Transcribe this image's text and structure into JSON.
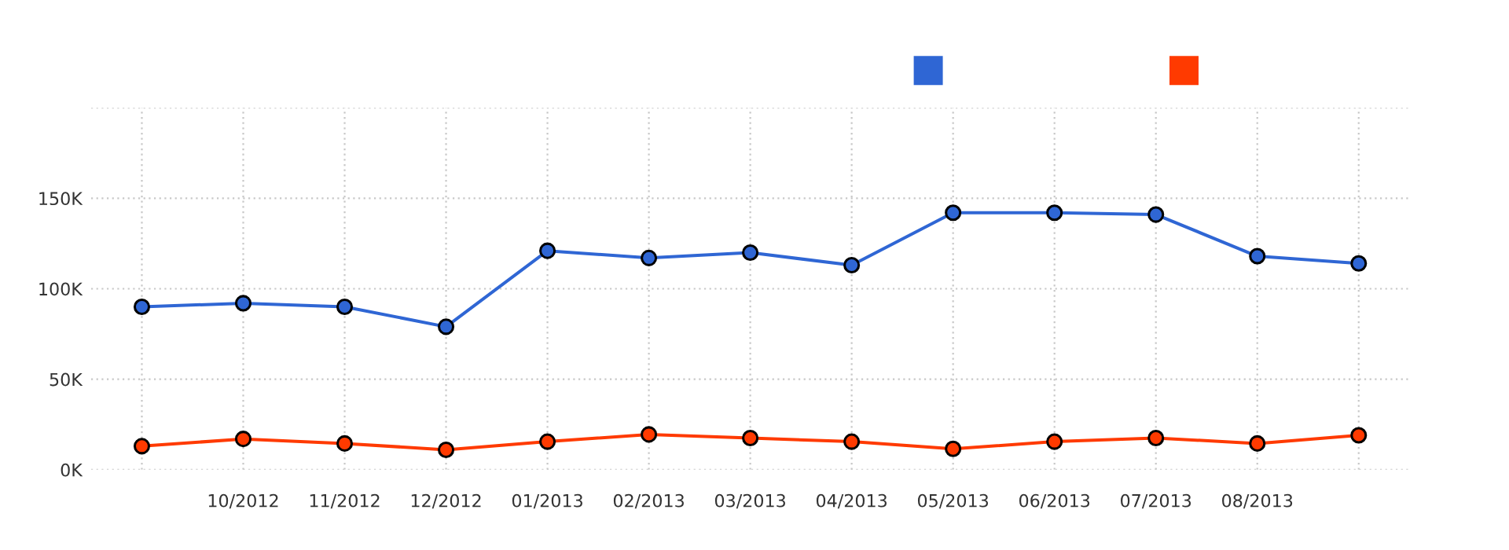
{
  "chart_data": {
    "type": "line",
    "categories": [
      null,
      "10/2012",
      "11/2012",
      "12/2012",
      "01/2013",
      "02/2013",
      "03/2013",
      "04/2013",
      "05/2013",
      "06/2013",
      "07/2013",
      "08/2013",
      null
    ],
    "series": [
      {
        "color": "#2f66d4",
        "values": [
          90000,
          92000,
          90000,
          79000,
          121000,
          117000,
          120000,
          113000,
          142000,
          142000,
          141000,
          118000,
          114000
        ]
      },
      {
        "color": "#ff3a00",
        "values": [
          13000,
          17000,
          14500,
          11000,
          15500,
          19500,
          17500,
          15500,
          11500,
          15500,
          17500,
          14500,
          19000
        ]
      }
    ],
    "ylim": [
      0,
      200000
    ],
    "yticks": [
      {
        "value": 0,
        "label": "0K"
      },
      {
        "value": 50000,
        "label": "50K"
      },
      {
        "value": 100000,
        "label": "100K"
      },
      {
        "value": 150000,
        "label": "150K"
      },
      {
        "value": 200000,
        "label": null
      }
    ],
    "grid": true,
    "marker": "circle",
    "line_style": "solid"
  }
}
